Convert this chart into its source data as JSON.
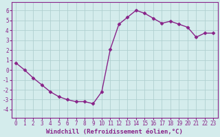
{
  "x": [
    0,
    1,
    2,
    3,
    4,
    5,
    6,
    7,
    8,
    9,
    10,
    11,
    12,
    13,
    14,
    15,
    16,
    17,
    18,
    19,
    20,
    21,
    22,
    23
  ],
  "y": [
    0.7,
    0.0,
    -0.8,
    -1.5,
    -2.2,
    -2.7,
    -3.0,
    -3.2,
    -3.2,
    -3.4,
    -2.2,
    2.1,
    4.6,
    5.3,
    6.0,
    5.7,
    5.2,
    4.7,
    4.9,
    4.6,
    4.3,
    3.3,
    3.7,
    3.7
  ],
  "line_color": "#882288",
  "marker": "D",
  "markersize": 2.5,
  "linewidth": 1.0,
  "xlabel": "Windchill (Refroidissement éolien,°C)",
  "xlabel_fontsize": 6.5,
  "ylabel_ticks": [
    -4,
    -3,
    -2,
    -1,
    0,
    1,
    2,
    3,
    4,
    5,
    6
  ],
  "xlim": [
    -0.5,
    23.5
  ],
  "ylim": [
    -4.8,
    6.8
  ],
  "background_color": "#d4ecec",
  "grid_color": "#b0d0d0",
  "tick_fontsize": 5.5,
  "spine_color": "#882288"
}
